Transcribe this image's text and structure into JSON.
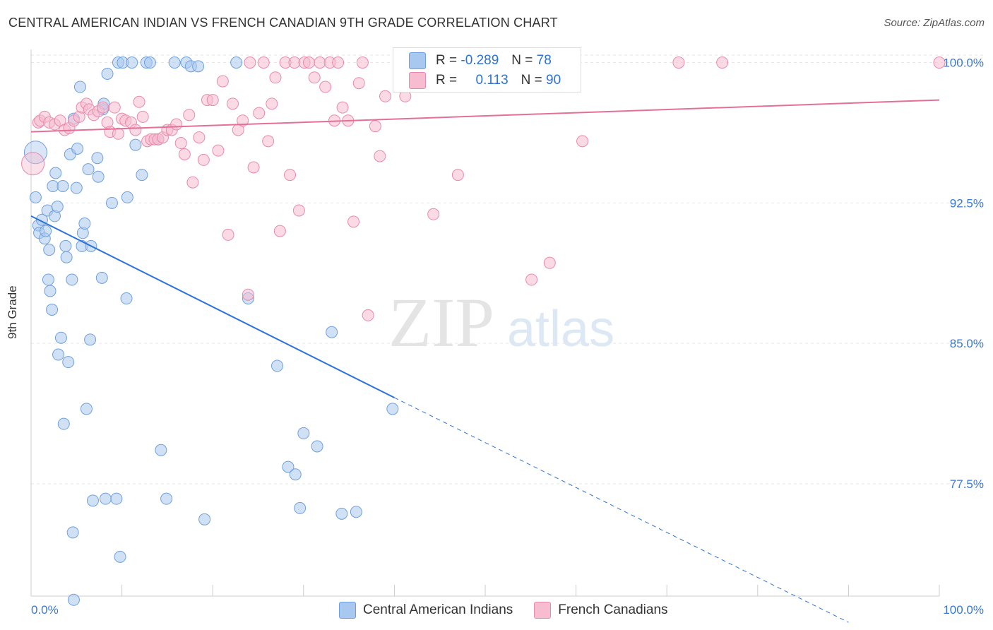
{
  "title": "CENTRAL AMERICAN INDIAN VS FRENCH CANADIAN 9TH GRADE CORRELATION CHART",
  "source": "Source: ZipAtlas.com",
  "watermark": {
    "zip": "ZIP",
    "atlas": "atlas"
  },
  "legend": {
    "r_label": "R =",
    "n_label": "N =",
    "rows": [
      {
        "r": "-0.289",
        "n": "78",
        "color": "#a9c8ef",
        "border": "#6fa0de"
      },
      {
        "r": "0.113",
        "n": "90",
        "color": "#f7bcd0",
        "border": "#e88aab"
      }
    ]
  },
  "bottom_legend": [
    {
      "label": "Central American Indians",
      "color": "#a9c8ef",
      "border": "#6fa0de"
    },
    {
      "label": "French Canadians",
      "color": "#f7bcd0",
      "border": "#e88aab"
    }
  ],
  "chart_data": {
    "type": "scatter",
    "title": "CENTRAL AMERICAN INDIAN VS FRENCH CANADIAN 9TH GRADE CORRELATION CHART",
    "xlabel": "",
    "ylabel": "9th Grade",
    "xlim": [
      0,
      100
    ],
    "ylim": [
      71.5,
      100.7
    ],
    "x_tick_labels": [
      "0.0%",
      "100.0%"
    ],
    "y_ticks": [
      77.5,
      85.0,
      92.5,
      100.0
    ],
    "y_tick_labels": [
      "77.5%",
      "85.0%",
      "92.5%",
      "100.0%"
    ],
    "grid": true,
    "series": [
      {
        "name": "Central American Indians",
        "color": "#6fa0de",
        "fill": "#a9c8ef",
        "line_color": "#2b72d6",
        "trend": {
          "x0": 0,
          "y0": 91.8,
          "x1": 40,
          "y1": 82.1,
          "x_dash_end": 90,
          "y_dash_end": 70.1
        },
        "points": [
          [
            0.5,
            95.2
          ],
          [
            0.5,
            92.8
          ],
          [
            0.8,
            91.3
          ],
          [
            0.9,
            90.9
          ],
          [
            1.2,
            91.6
          ],
          [
            1.5,
            90.6
          ],
          [
            1.6,
            91.0
          ],
          [
            1.8,
            92.1
          ],
          [
            1.9,
            88.4
          ],
          [
            2.0,
            90.0
          ],
          [
            2.1,
            87.8
          ],
          [
            2.3,
            86.8
          ],
          [
            2.4,
            93.4
          ],
          [
            2.6,
            91.8
          ],
          [
            2.7,
            94.1
          ],
          [
            2.9,
            92.3
          ],
          [
            3.0,
            84.4
          ],
          [
            3.3,
            85.3
          ],
          [
            3.5,
            93.4
          ],
          [
            3.6,
            80.7
          ],
          [
            3.8,
            90.2
          ],
          [
            3.9,
            89.6
          ],
          [
            4.1,
            84.0
          ],
          [
            4.3,
            95.1
          ],
          [
            4.5,
            88.4
          ],
          [
            4.6,
            74.9
          ],
          [
            4.7,
            97.0
          ],
          [
            5.0,
            93.3
          ],
          [
            5.1,
            95.4
          ],
          [
            5.4,
            98.7
          ],
          [
            5.6,
            90.2
          ],
          [
            5.7,
            90.9
          ],
          [
            5.9,
            91.4
          ],
          [
            6.1,
            81.5
          ],
          [
            6.3,
            94.3
          ],
          [
            6.5,
            85.2
          ],
          [
            6.6,
            90.2
          ],
          [
            6.8,
            76.6
          ],
          [
            7.3,
            94.9
          ],
          [
            7.4,
            93.9
          ],
          [
            7.8,
            88.5
          ],
          [
            7.9,
            97.5
          ],
          [
            8.0,
            97.8
          ],
          [
            8.2,
            76.7
          ],
          [
            8.4,
            99.4
          ],
          [
            8.9,
            92.5
          ],
          [
            9.4,
            76.7
          ],
          [
            9.6,
            100.0
          ],
          [
            9.8,
            73.6
          ],
          [
            10.1,
            100.0
          ],
          [
            10.5,
            87.4
          ],
          [
            10.6,
            92.8
          ],
          [
            11.1,
            100.0
          ],
          [
            11.5,
            95.6
          ],
          [
            12.2,
            94.0
          ],
          [
            12.7,
            100.0
          ],
          [
            13.1,
            100.0
          ],
          [
            14.0,
            95.9
          ],
          [
            14.3,
            79.3
          ],
          [
            14.9,
            76.7
          ],
          [
            15.8,
            100.0
          ],
          [
            17.1,
            100.0
          ],
          [
            17.6,
            99.8
          ],
          [
            18.4,
            99.8
          ],
          [
            19.1,
            75.6
          ],
          [
            22.6,
            100.0
          ],
          [
            23.9,
            87.4
          ],
          [
            27.1,
            83.8
          ],
          [
            28.3,
            78.4
          ],
          [
            29.1,
            78.0
          ],
          [
            29.6,
            76.2
          ],
          [
            30.0,
            80.2
          ],
          [
            31.5,
            79.5
          ],
          [
            33.1,
            85.6
          ],
          [
            34.2,
            75.9
          ],
          [
            35.8,
            76.0
          ],
          [
            39.8,
            81.5
          ],
          [
            4.7,
            71.3
          ]
        ]
      },
      {
        "name": "French Canadians",
        "color": "#e88aab",
        "fill": "#f7bcd0",
        "line_color": "#e46f98",
        "trend": {
          "x0": 0,
          "y0": 96.3,
          "x1": 100,
          "y1": 98.0
        },
        "points": [
          [
            0.2,
            94.6
          ],
          [
            0.8,
            96.8
          ],
          [
            1.0,
            96.9
          ],
          [
            1.5,
            97.1
          ],
          [
            2.0,
            96.8
          ],
          [
            2.6,
            96.7
          ],
          [
            3.2,
            96.9
          ],
          [
            3.7,
            96.4
          ],
          [
            4.2,
            96.5
          ],
          [
            4.7,
            96.9
          ],
          [
            5.3,
            97.1
          ],
          [
            5.6,
            97.6
          ],
          [
            6.1,
            97.8
          ],
          [
            6.4,
            97.5
          ],
          [
            6.9,
            97.2
          ],
          [
            7.4,
            97.4
          ],
          [
            7.9,
            97.6
          ],
          [
            8.4,
            96.8
          ],
          [
            8.7,
            96.3
          ],
          [
            9.2,
            97.6
          ],
          [
            9.6,
            96.2
          ],
          [
            10.0,
            97.0
          ],
          [
            10.4,
            96.9
          ],
          [
            11.0,
            96.8
          ],
          [
            11.5,
            96.4
          ],
          [
            11.9,
            97.9
          ],
          [
            12.3,
            97.1
          ],
          [
            12.8,
            95.8
          ],
          [
            13.2,
            95.9
          ],
          [
            13.6,
            95.9
          ],
          [
            14.0,
            95.9
          ],
          [
            14.5,
            96.0
          ],
          [
            15.0,
            96.4
          ],
          [
            15.5,
            96.4
          ],
          [
            16.0,
            96.7
          ],
          [
            16.5,
            95.7
          ],
          [
            16.9,
            95.1
          ],
          [
            17.4,
            97.2
          ],
          [
            17.8,
            93.6
          ],
          [
            18.5,
            96.0
          ],
          [
            19.0,
            94.8
          ],
          [
            19.4,
            98.0
          ],
          [
            20.0,
            98.0
          ],
          [
            20.6,
            95.3
          ],
          [
            21.1,
            99.0
          ],
          [
            21.7,
            90.8
          ],
          [
            22.2,
            97.8
          ],
          [
            22.8,
            96.4
          ],
          [
            23.3,
            96.9
          ],
          [
            23.9,
            87.6
          ],
          [
            24.1,
            100.0
          ],
          [
            24.5,
            94.4
          ],
          [
            25.1,
            97.3
          ],
          [
            25.6,
            100.0
          ],
          [
            26.1,
            95.8
          ],
          [
            26.5,
            97.8
          ],
          [
            26.9,
            99.2
          ],
          [
            27.4,
            91.0
          ],
          [
            28.0,
            100.0
          ],
          [
            28.5,
            94.0
          ],
          [
            29.0,
            100.0
          ],
          [
            29.5,
            92.1
          ],
          [
            30.1,
            100.0
          ],
          [
            30.6,
            100.0
          ],
          [
            31.2,
            99.2
          ],
          [
            31.8,
            100.0
          ],
          [
            32.4,
            98.7
          ],
          [
            32.9,
            100.0
          ],
          [
            33.4,
            96.9
          ],
          [
            33.8,
            100.0
          ],
          [
            34.3,
            97.6
          ],
          [
            34.9,
            96.9
          ],
          [
            35.5,
            91.5
          ],
          [
            36.1,
            98.9
          ],
          [
            36.5,
            100.0
          ],
          [
            37.1,
            86.5
          ],
          [
            37.9,
            96.6
          ],
          [
            38.4,
            95.0
          ],
          [
            39.0,
            98.2
          ],
          [
            41.2,
            98.2
          ],
          [
            42.3,
            100.0
          ],
          [
            44.3,
            91.9
          ],
          [
            45.8,
            100.0
          ],
          [
            47.0,
            94.0
          ],
          [
            55.1,
            88.4
          ],
          [
            57.1,
            89.3
          ],
          [
            60.7,
            95.8
          ],
          [
            71.3,
            100.0
          ],
          [
            76.1,
            100.0
          ],
          [
            100.0,
            100.0
          ]
        ]
      }
    ]
  }
}
